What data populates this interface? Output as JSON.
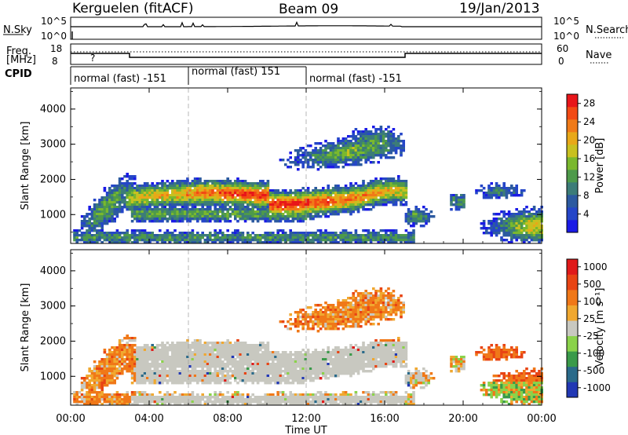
{
  "header": {
    "station": "Kerguelen (fitACF)",
    "beam": "Beam 09",
    "date": "19/Jan/2013"
  },
  "noise_panel": {
    "left_label": "N.Sky",
    "right_label": "N.Search",
    "left_ticks": [
      "10^5",
      "10^0"
    ],
    "right_ticks": [
      "10^5",
      "10^0"
    ]
  },
  "freq_panel": {
    "left_label_line1": "Freq.",
    "left_label_line2": "[MHz]",
    "right_label": "Nave",
    "left_ticks": [
      "18",
      "8"
    ],
    "right_ticks": [
      "60",
      "0"
    ],
    "mark": "?"
  },
  "cpid": {
    "label": "CPID",
    "segments": [
      {
        "text": "normal (fast) -151",
        "start_hour": 0
      },
      {
        "text": "normal (fast) 151",
        "start_hour": 6
      },
      {
        "text": "normal (fast) -151",
        "start_hour": 12
      }
    ]
  },
  "x_axis": {
    "title": "Time UT",
    "ticks": [
      "00:00",
      "04:00",
      "08:00",
      "12:00",
      "16:00",
      "20:00",
      "00:00"
    ]
  },
  "chart_data": [
    {
      "type": "heatmap",
      "title": "Power",
      "ylabel": "Slant Range [km]",
      "xlabel": "Time UT",
      "x_range_hours": [
        0,
        24
      ],
      "ylim_km": [
        180,
        4600
      ],
      "y_ticks": [
        1000,
        2000,
        3000,
        4000
      ],
      "colorbar": {
        "label": "Power [dB]",
        "ticks": [
          4,
          8,
          12,
          16,
          20,
          24,
          28
        ],
        "colors": [
          "#1a1ae6",
          "#2546c8",
          "#2c5aa0",
          "#3c7c78",
          "#4e9a4a",
          "#7ab82e",
          "#c8c020",
          "#e8a818",
          "#f07a18",
          "#f24a14",
          "#e8161a"
        ]
      },
      "features": [
        {
          "desc": "main band",
          "start_hour": 3,
          "end_hour": 17,
          "range_km_start": 1500,
          "range_km_end": 1800,
          "peak_db": 28
        }
      ]
    },
    {
      "type": "heatmap",
      "title": "Velocity",
      "ylabel": "Slant Range [km]",
      "xlabel": "Time UT",
      "x_range_hours": [
        0,
        24
      ],
      "ylim_km": [
        180,
        4600
      ],
      "y_ticks": [
        1000,
        2000,
        3000,
        4000
      ],
      "colorbar": {
        "label": "Velocity [m s⁻¹]",
        "ticks": [
          1000,
          500,
          100,
          25,
          -25,
          -100,
          -500,
          -1000
        ],
        "colors": [
          "#2238b4",
          "#2a6a8a",
          "#3a9a4a",
          "#8ad24a",
          "#c8c8c0",
          "#f0a830",
          "#f07818",
          "#e84414",
          "#e01a1a"
        ]
      }
    }
  ]
}
